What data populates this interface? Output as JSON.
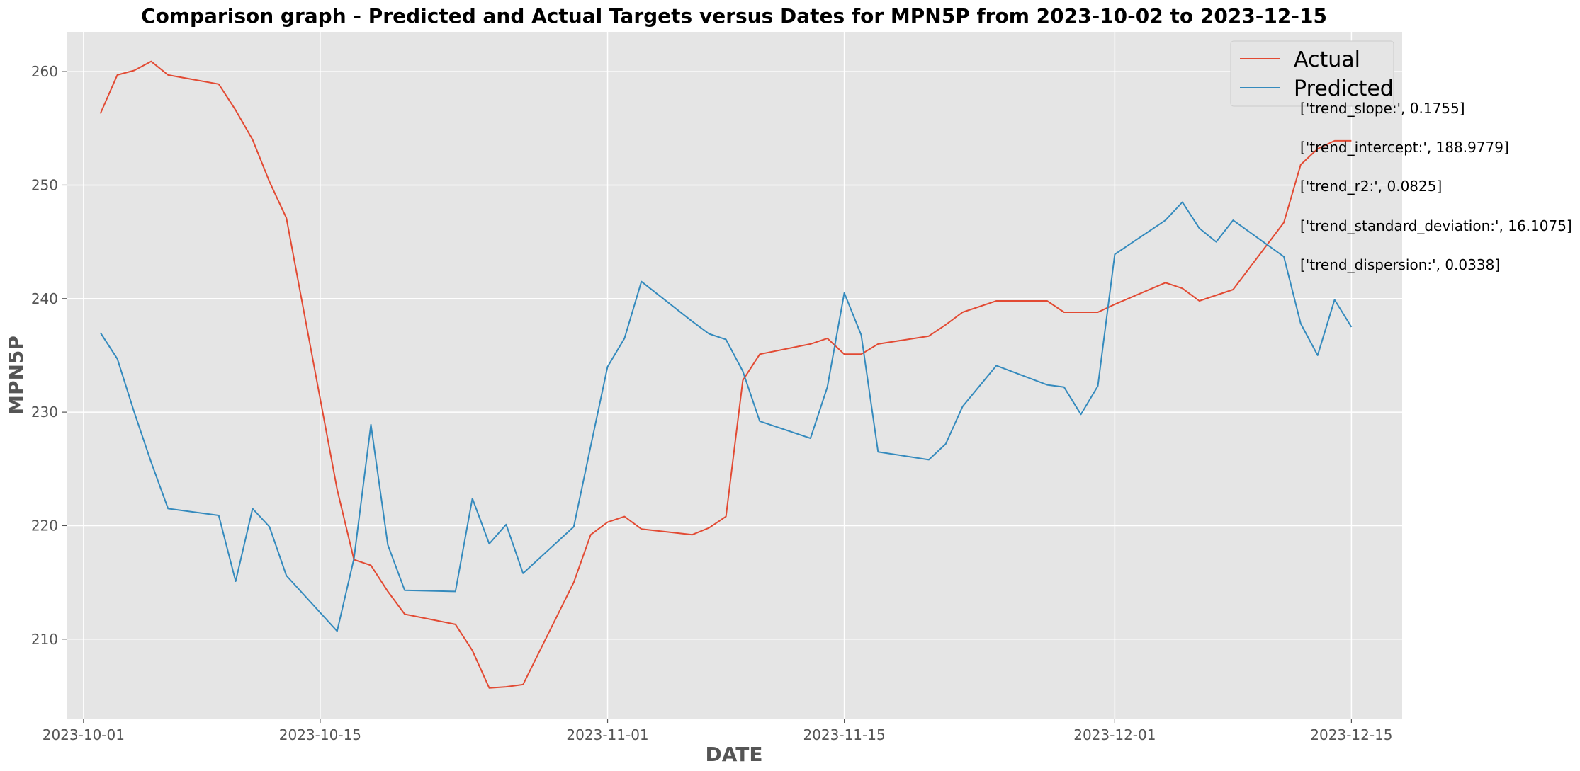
{
  "chart_data": {
    "type": "line",
    "title": "Comparison graph - Predicted and Actual Targets versus Dates for MPN5P from 2023-10-02 to 2023-12-15",
    "xlabel": "DATE",
    "ylabel": "MPN5P",
    "xlim": [
      "2023-09-30",
      "2023-12-18"
    ],
    "ylim": [
      203,
      263.5
    ],
    "grid": true,
    "legend_position": "top-right",
    "x_ticks": [
      "2023-10-01",
      "2023-10-15",
      "2023-11-01",
      "2023-11-15",
      "2023-12-01",
      "2023-12-15"
    ],
    "y_ticks": [
      210,
      220,
      230,
      240,
      250,
      260
    ],
    "series": [
      {
        "name": "Actual",
        "color": "#E24A33",
        "points": [
          [
            "2023-10-02",
            256.3
          ],
          [
            "2023-10-03",
            259.7
          ],
          [
            "2023-10-04",
            260.1
          ],
          [
            "2023-10-05",
            260.9
          ],
          [
            "2023-10-06",
            259.7
          ],
          [
            "2023-10-09",
            258.9
          ],
          [
            "2023-10-10",
            256.6
          ],
          [
            "2023-10-11",
            254.0
          ],
          [
            "2023-10-12",
            250.3
          ],
          [
            "2023-10-13",
            247.1
          ],
          [
            "2023-10-16",
            223.2
          ],
          [
            "2023-10-17",
            217.0
          ],
          [
            "2023-10-18",
            216.5
          ],
          [
            "2023-10-19",
            214.2
          ],
          [
            "2023-10-20",
            212.2
          ],
          [
            "2023-10-23",
            211.3
          ],
          [
            "2023-10-24",
            209.0
          ],
          [
            "2023-10-25",
            205.7
          ],
          [
            "2023-10-26",
            205.8
          ],
          [
            "2023-10-27",
            206.0
          ],
          [
            "2023-10-30",
            215.0
          ],
          [
            "2023-10-31",
            219.2
          ],
          [
            "2023-11-01",
            220.3
          ],
          [
            "2023-11-02",
            220.8
          ],
          [
            "2023-11-03",
            219.7
          ],
          [
            "2023-11-06",
            219.2
          ],
          [
            "2023-11-07",
            219.8
          ],
          [
            "2023-11-08",
            220.8
          ],
          [
            "2023-11-09",
            232.8
          ],
          [
            "2023-11-10",
            235.1
          ],
          [
            "2023-11-13",
            236.0
          ],
          [
            "2023-11-14",
            236.5
          ],
          [
            "2023-11-15",
            235.1
          ],
          [
            "2023-11-16",
            235.1
          ],
          [
            "2023-11-17",
            236.0
          ],
          [
            "2023-11-20",
            236.7
          ],
          [
            "2023-11-21",
            237.7
          ],
          [
            "2023-11-22",
            238.8
          ],
          [
            "2023-11-24",
            239.8
          ],
          [
            "2023-11-27",
            239.8
          ],
          [
            "2023-11-28",
            238.8
          ],
          [
            "2023-11-29",
            238.8
          ],
          [
            "2023-11-30",
            238.8
          ],
          [
            "2023-12-01",
            239.5
          ],
          [
            "2023-12-04",
            241.4
          ],
          [
            "2023-12-05",
            240.9
          ],
          [
            "2023-12-06",
            239.8
          ],
          [
            "2023-12-08",
            240.8
          ],
          [
            "2023-12-11",
            246.7
          ],
          [
            "2023-12-12",
            251.8
          ],
          [
            "2023-12-13",
            253.2
          ],
          [
            "2023-12-14",
            253.9
          ],
          [
            "2023-12-15",
            253.9
          ]
        ]
      },
      {
        "name": "Predicted",
        "color": "#348ABD",
        "points": [
          [
            "2023-10-02",
            237.0
          ],
          [
            "2023-10-03",
            234.7
          ],
          [
            "2023-10-04",
            230.0
          ],
          [
            "2023-10-05",
            225.6
          ],
          [
            "2023-10-06",
            221.5
          ],
          [
            "2023-10-09",
            220.9
          ],
          [
            "2023-10-10",
            215.1
          ],
          [
            "2023-10-11",
            221.5
          ],
          [
            "2023-10-12",
            219.9
          ],
          [
            "2023-10-13",
            215.6
          ],
          [
            "2023-10-16",
            210.7
          ],
          [
            "2023-10-17",
            217.1
          ],
          [
            "2023-10-18",
            228.9
          ],
          [
            "2023-10-19",
            218.3
          ],
          [
            "2023-10-20",
            214.3
          ],
          [
            "2023-10-23",
            214.2
          ],
          [
            "2023-10-24",
            222.4
          ],
          [
            "2023-10-25",
            218.4
          ],
          [
            "2023-10-26",
            220.1
          ],
          [
            "2023-10-27",
            215.8
          ],
          [
            "2023-10-30",
            219.9
          ],
          [
            "2023-10-31",
            227.0
          ],
          [
            "2023-11-01",
            234.0
          ],
          [
            "2023-11-02",
            236.5
          ],
          [
            "2023-11-03",
            241.5
          ],
          [
            "2023-11-06",
            238.0
          ],
          [
            "2023-11-07",
            236.9
          ],
          [
            "2023-11-08",
            236.4
          ],
          [
            "2023-11-09",
            233.6
          ],
          [
            "2023-11-10",
            229.2
          ],
          [
            "2023-11-13",
            227.7
          ],
          [
            "2023-11-14",
            232.2
          ],
          [
            "2023-11-15",
            240.5
          ],
          [
            "2023-11-16",
            236.8
          ],
          [
            "2023-11-17",
            226.5
          ],
          [
            "2023-11-20",
            225.8
          ],
          [
            "2023-11-21",
            227.2
          ],
          [
            "2023-11-22",
            230.5
          ],
          [
            "2023-11-24",
            234.1
          ],
          [
            "2023-11-27",
            232.4
          ],
          [
            "2023-11-28",
            232.2
          ],
          [
            "2023-11-29",
            229.8
          ],
          [
            "2023-11-30",
            232.3
          ],
          [
            "2023-12-01",
            243.9
          ],
          [
            "2023-12-04",
            246.9
          ],
          [
            "2023-12-05",
            248.5
          ],
          [
            "2023-12-06",
            246.2
          ],
          [
            "2023-12-07",
            245.0
          ],
          [
            "2023-12-08",
            246.9
          ],
          [
            "2023-12-11",
            243.7
          ],
          [
            "2023-12-12",
            237.8
          ],
          [
            "2023-12-13",
            235.0
          ],
          [
            "2023-12-14",
            239.9
          ],
          [
            "2023-12-15",
            237.5
          ]
        ]
      }
    ],
    "annotations": [
      "['trend_slope:', 0.1755]",
      "['trend_intercept:', 188.9779]",
      "['trend_r2:', 0.0825]",
      "['trend_standard_deviation:', 16.1075]",
      "['trend_dispersion:', 0.0338]"
    ],
    "colors": {
      "plot_background": "#E5E5E5",
      "grid": "#FFFFFF",
      "tick_text": "#555555"
    }
  }
}
